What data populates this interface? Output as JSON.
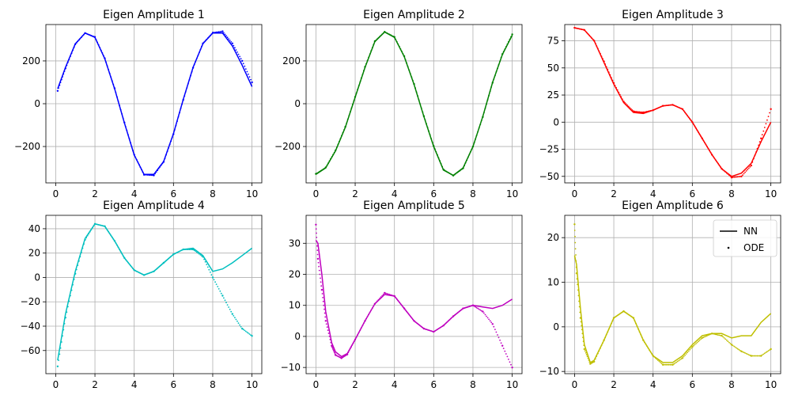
{
  "chart_data": [
    {
      "type": "line",
      "title": "Eigen Amplitude 1",
      "color": "#0000ff",
      "xlim": [
        -0.5,
        10.5
      ],
      "ylim": [
        -370,
        370
      ],
      "xticks": [
        0,
        2,
        4,
        6,
        8,
        10
      ],
      "yticks": [
        -200,
        0,
        200
      ],
      "series": [
        {
          "name": "NN",
          "x": [
            0.1,
            0.5,
            1,
            1.5,
            2,
            2.5,
            3,
            3.5,
            4,
            4.5,
            5,
            5.5,
            6,
            6.5,
            7,
            7.5,
            8,
            8.5,
            9,
            9.5,
            10
          ],
          "y": [
            70,
            170,
            280,
            330,
            310,
            210,
            70,
            -90,
            -240,
            -330,
            -330,
            -270,
            -140,
            20,
            170,
            280,
            330,
            330,
            270,
            180,
            80
          ]
        },
        {
          "name": "ODE",
          "x": [
            0.1,
            0.5,
            1,
            1.5,
            2,
            2.5,
            3,
            3.5,
            4,
            4.5,
            5,
            5.5,
            6,
            6.5,
            7,
            7.5,
            8,
            8.5,
            9,
            9.5,
            10
          ],
          "y": [
            60,
            165,
            278,
            330,
            312,
            212,
            72,
            -88,
            -238,
            -332,
            -335,
            -272,
            -142,
            18,
            168,
            282,
            332,
            338,
            282,
            200,
            100
          ]
        }
      ]
    },
    {
      "type": "line",
      "title": "Eigen Amplitude 2",
      "color": "#008000",
      "xlim": [
        -0.5,
        10.5
      ],
      "ylim": [
        -370,
        370
      ],
      "xticks": [
        0,
        2,
        4,
        6,
        8,
        10
      ],
      "yticks": [
        -200,
        0,
        200
      ],
      "series": [
        {
          "name": "NN",
          "x": [
            0,
            0.5,
            1,
            1.5,
            2,
            2.5,
            3,
            3.5,
            4,
            4.5,
            5,
            5.5,
            6,
            6.5,
            7,
            7.5,
            8,
            8.5,
            9,
            9.5,
            10
          ],
          "y": [
            -330,
            -300,
            -220,
            -110,
            30,
            170,
            290,
            335,
            310,
            220,
            90,
            -60,
            -200,
            -310,
            -335,
            -300,
            -200,
            -60,
            100,
            230,
            320
          ]
        },
        {
          "name": "ODE",
          "x": [
            0,
            0.5,
            1,
            1.5,
            2,
            2.5,
            3,
            3.5,
            4,
            4.5,
            5,
            5.5,
            6,
            6.5,
            7,
            7.5,
            8,
            8.5,
            9,
            9.5,
            10
          ],
          "y": [
            -328,
            -298,
            -218,
            -108,
            32,
            172,
            292,
            336,
            312,
            222,
            92,
            -58,
            -198,
            -308,
            -336,
            -302,
            -200,
            -62,
            98,
            232,
            324
          ]
        }
      ]
    },
    {
      "type": "line",
      "title": "Eigen Amplitude 3",
      "color": "#ff0000",
      "xlim": [
        -0.5,
        10.5
      ],
      "ylim": [
        -56,
        90
      ],
      "xticks": [
        0,
        2,
        4,
        6,
        8,
        10
      ],
      "yticks": [
        -50,
        -25,
        0,
        25,
        50,
        75
      ],
      "series": [
        {
          "name": "NN",
          "x": [
            0,
            0.5,
            1,
            1.5,
            2,
            2.5,
            3,
            3.5,
            4,
            4.5,
            5,
            5.5,
            6,
            6.5,
            7,
            7.5,
            8,
            8.5,
            9,
            9.5,
            10
          ],
          "y": [
            87,
            85,
            75,
            55,
            35,
            18,
            9,
            8,
            11,
            15,
            16,
            12,
            0,
            -15,
            -30,
            -43,
            -50,
            -47,
            -38,
            -18,
            0
          ]
        },
        {
          "name": "ODE",
          "x": [
            0,
            0.5,
            1,
            1.5,
            2,
            2.5,
            3,
            3.5,
            4,
            4.5,
            5,
            5.5,
            6,
            6.5,
            7,
            7.5,
            8,
            8.5,
            9,
            9.5,
            10
          ],
          "y": [
            87,
            85,
            75,
            56,
            36,
            19,
            10,
            9,
            11,
            15,
            16,
            12,
            0,
            -15,
            -30,
            -43,
            -51,
            -50,
            -40,
            -15,
            12
          ]
        }
      ]
    },
    {
      "type": "line",
      "title": "Eigen Amplitude 4",
      "color": "#00bfbf",
      "xlim": [
        -0.5,
        10.5
      ],
      "ylim": [
        -79,
        51
      ],
      "xticks": [
        0,
        2,
        4,
        6,
        8,
        10
      ],
      "yticks": [
        -60,
        -40,
        -20,
        0,
        20,
        40
      ],
      "series": [
        {
          "name": "NN",
          "x": [
            0.1,
            0.5,
            1,
            1.5,
            2,
            2.5,
            3,
            3.5,
            4,
            4.5,
            5,
            5.5,
            6,
            6.5,
            7,
            7.5,
            8,
            8.5,
            9,
            9.5,
            10
          ],
          "y": [
            -68,
            -30,
            5,
            32,
            44,
            42,
            30,
            16,
            6,
            2,
            5,
            12,
            19,
            23,
            24,
            18,
            5,
            7,
            12,
            18,
            24
          ]
        },
        {
          "name": "ODE",
          "x": [
            0.1,
            0.5,
            1,
            1.5,
            2,
            2.5,
            3,
            3.5,
            4,
            4.5,
            5,
            5.5,
            6,
            6.5,
            7,
            7.5,
            8,
            8.5,
            9,
            9.5,
            10
          ],
          "y": [
            -73,
            -33,
            3,
            31,
            44,
            42,
            30,
            16,
            6,
            2,
            5,
            12,
            19,
            23,
            23,
            17,
            0,
            -15,
            -30,
            -42,
            -48
          ]
        }
      ]
    },
    {
      "type": "line",
      "title": "Eigen Amplitude 5",
      "color": "#bf00bf",
      "xlim": [
        -0.5,
        10.5
      ],
      "ylim": [
        -12,
        39
      ],
      "xticks": [
        0,
        2,
        4,
        6,
        8,
        10
      ],
      "yticks": [
        -10,
        0,
        10,
        20,
        30
      ],
      "series": [
        {
          "name": "NN",
          "x": [
            0,
            0.1,
            0.3,
            0.5,
            0.8,
            1,
            1.3,
            1.6,
            2,
            2.5,
            3,
            3.5,
            4,
            4.5,
            5,
            5.5,
            6,
            6.5,
            7,
            7.5,
            8,
            8.5,
            9,
            9.5,
            10
          ],
          "y": [
            31,
            30,
            20,
            8,
            -2,
            -5,
            -6.5,
            -5.5,
            -1,
            5,
            10.5,
            13.5,
            13,
            9,
            5,
            2.5,
            1.5,
            3.5,
            6.5,
            9,
            10,
            9.5,
            9,
            10,
            12
          ]
        },
        {
          "name": "ODE",
          "x": [
            0,
            0.1,
            0.3,
            0.5,
            0.8,
            1,
            1.3,
            1.6,
            2,
            2.5,
            3,
            3.5,
            4,
            4.5,
            5,
            5.5,
            6,
            6.5,
            7,
            7.5,
            8,
            8.5,
            9,
            9.5,
            10
          ],
          "y": [
            36,
            25,
            15,
            5,
            -3,
            -6,
            -7,
            -5.8,
            -1,
            5,
            10.5,
            14,
            13,
            9,
            5,
            2.5,
            1.5,
            3.5,
            6.5,
            9,
            10,
            8,
            4,
            -3,
            -10
          ]
        }
      ]
    },
    {
      "type": "line",
      "title": "Eigen Amplitude 6",
      "color": "#bfbf00",
      "xlim": [
        -0.5,
        10.5
      ],
      "ylim": [
        -10.5,
        25
      ],
      "xticks": [
        0,
        2,
        4,
        6,
        8,
        10
      ],
      "yticks": [
        -10,
        0,
        10,
        20
      ],
      "series": [
        {
          "name": "NN",
          "x": [
            0,
            0.1,
            0.3,
            0.5,
            0.8,
            1,
            1.5,
            2,
            2.5,
            3,
            3.5,
            4,
            4.5,
            5,
            5.5,
            6,
            6.5,
            7,
            7.5,
            8,
            8.5,
            9,
            9.5,
            10
          ],
          "y": [
            16,
            14,
            4,
            -4,
            -8,
            -7.5,
            -3,
            2,
            3.5,
            2,
            -3,
            -6.5,
            -8,
            -8,
            -6.5,
            -4,
            -2,
            -1.5,
            -1.5,
            -2.5,
            -2,
            -2,
            1,
            3
          ]
        },
        {
          "name": "ODE",
          "x": [
            0,
            0.1,
            0.3,
            0.5,
            0.8,
            1,
            1.5,
            2,
            2.5,
            3,
            3.5,
            4,
            4.5,
            5,
            5.5,
            6,
            6.5,
            7,
            7.5,
            8,
            8.5,
            9,
            9.5,
            10
          ],
          "y": [
            23,
            12,
            2,
            -5,
            -8.3,
            -7.8,
            -3,
            2,
            3.5,
            2,
            -3,
            -6.5,
            -8.5,
            -8.5,
            -7,
            -4.5,
            -2.5,
            -1.5,
            -2,
            -4,
            -5.5,
            -6.5,
            -6.5,
            -5
          ]
        }
      ],
      "legend": {
        "position": "upper-right",
        "entries": [
          {
            "label": "NN",
            "marker": "line",
            "color": "#000000"
          },
          {
            "label": "ODE",
            "marker": "dot",
            "color": "#000000"
          }
        ]
      }
    }
  ]
}
